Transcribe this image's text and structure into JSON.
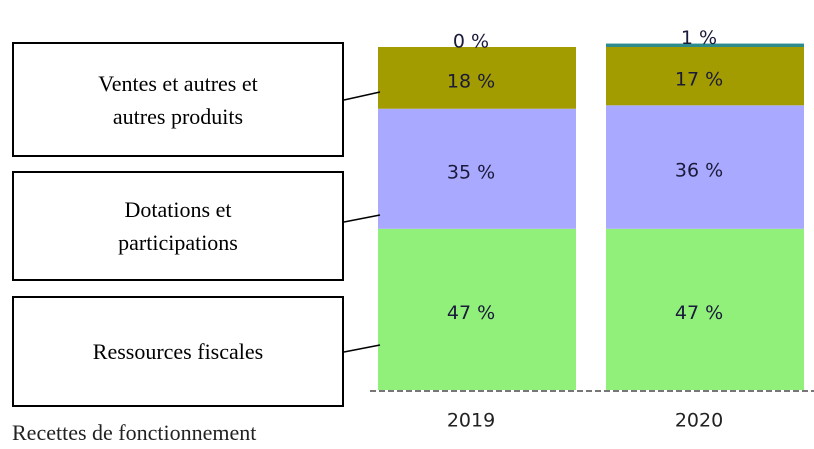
{
  "chart_data": {
    "type": "stacked_bar",
    "caption": "Recettes de fonctionnement",
    "categories": [
      "2019",
      "2020"
    ],
    "ylim": [
      0,
      100
    ],
    "series": [
      {
        "name": "Ressources fiscales",
        "color": "#90f07a",
        "values": [
          47,
          47
        ],
        "value_labels": [
          "47 %",
          "47 %"
        ]
      },
      {
        "name": "Dotations et participations",
        "color": "#a9a9ff",
        "values": [
          35,
          36
        ],
        "value_labels": [
          "35 %",
          "36 %"
        ]
      },
      {
        "name": "Ventes et autres et autres produits",
        "color": "#a39c00",
        "values": [
          18,
          17
        ],
        "value_labels": [
          "18 %",
          "17 %"
        ]
      },
      {
        "color": "#2e8b8b",
        "values": [
          0,
          1
        ],
        "value_labels": [
          "0 %",
          "1 %"
        ]
      }
    ]
  }
}
